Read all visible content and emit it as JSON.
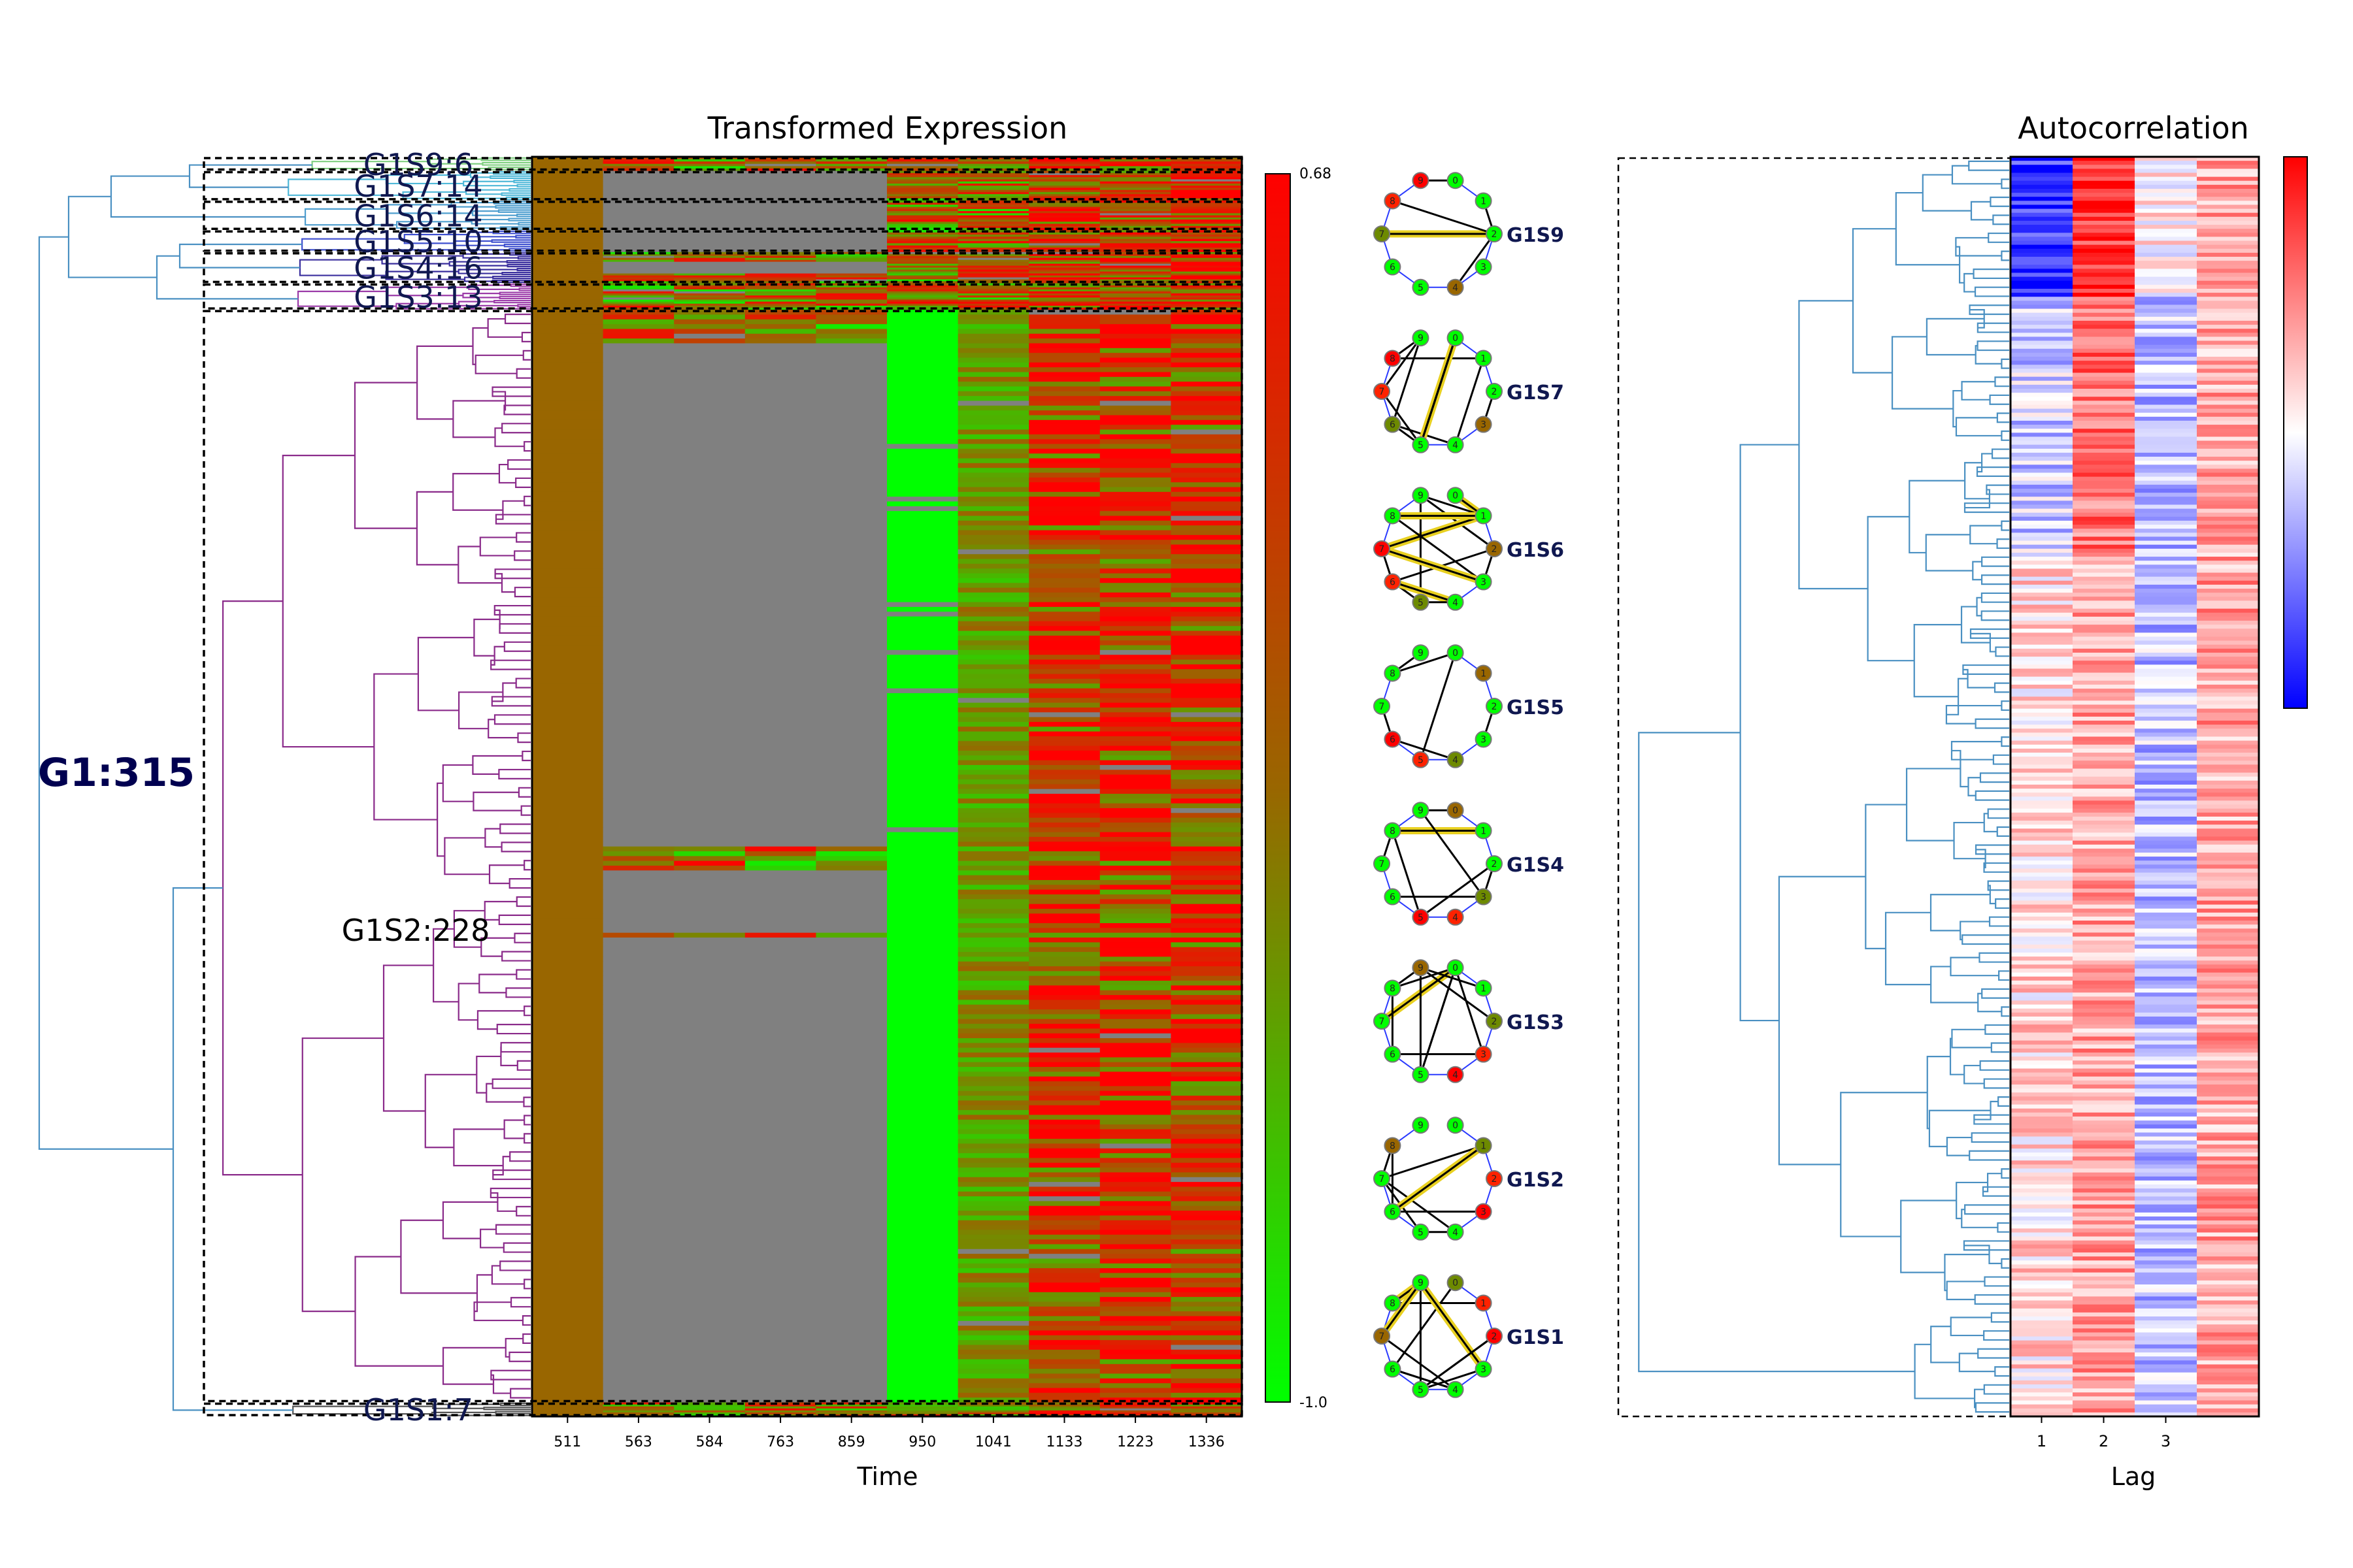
{
  "chart_data": [
    {
      "type": "heatmap",
      "title": "Transformed Expression",
      "xlabel": "Time",
      "ylabel": "",
      "x_tick_labels": [
        "511",
        "563",
        "584",
        "763",
        "859",
        "950",
        "1041",
        "1133",
        "1223",
        "1336"
      ],
      "colorbar": {
        "min": -1.0,
        "max": 0.68,
        "min_label": "-1.0",
        "max_label": "0.68",
        "colors": [
          "#00ff00",
          "#996600",
          "#ff0000"
        ]
      },
      "missing_color": "#808080",
      "root_label": "G1:315",
      "clusters": [
        {
          "label": "G1S9:6",
          "size": 6
        },
        {
          "label": "G1S7:14",
          "size": 14
        },
        {
          "label": "G1S6:14",
          "size": 14
        },
        {
          "label": "G1S5:10",
          "size": 10
        },
        {
          "label": "G1S4:16",
          "size": 16
        },
        {
          "label": "G1S3:13",
          "size": 13
        },
        {
          "label": "G1S2:228",
          "size": 228
        },
        {
          "label": "G1S1:7",
          "size": 7
        }
      ]
    },
    {
      "type": "network",
      "networks": [
        {
          "label": "G1S9",
          "node_labels": [
            "0",
            "1",
            "2",
            "3",
            "4",
            "5",
            "6",
            "7",
            "8",
            "9"
          ]
        },
        {
          "label": "G1S7",
          "node_labels": [
            "0",
            "1",
            "2",
            "3",
            "4",
            "5",
            "6",
            "7",
            "8",
            "9"
          ]
        },
        {
          "label": "G1S6",
          "node_labels": [
            "0",
            "1",
            "2",
            "3",
            "4",
            "5",
            "6",
            "7",
            "8",
            "9"
          ]
        },
        {
          "label": "G1S5",
          "node_labels": [
            "0",
            "1",
            "2",
            "3",
            "4",
            "5",
            "6",
            "7",
            "8",
            "9"
          ]
        },
        {
          "label": "G1S4",
          "node_labels": [
            "0",
            "1",
            "2",
            "3",
            "4",
            "5",
            "6",
            "7",
            "8",
            "9"
          ]
        },
        {
          "label": "G1S3",
          "node_labels": [
            "0",
            "1",
            "2",
            "3",
            "4",
            "5",
            "6",
            "7",
            "8",
            "9"
          ]
        },
        {
          "label": "G1S2",
          "node_labels": [
            "0",
            "1",
            "2",
            "3",
            "4",
            "5",
            "6",
            "7",
            "8",
            "9"
          ]
        },
        {
          "label": "G1S1",
          "node_labels": [
            "0",
            "1",
            "2",
            "3",
            "4",
            "5",
            "6",
            "7",
            "8",
            "9"
          ]
        }
      ]
    },
    {
      "type": "heatmap",
      "title": "Autocorrelation",
      "xlabel": "Lag",
      "ylabel": "",
      "x_tick_labels": [
        "1",
        "2",
        "3"
      ],
      "columns": 4,
      "colorbar": {
        "colors": [
          "#0000ff",
          "#ffffff",
          "#ff0000"
        ]
      }
    }
  ]
}
